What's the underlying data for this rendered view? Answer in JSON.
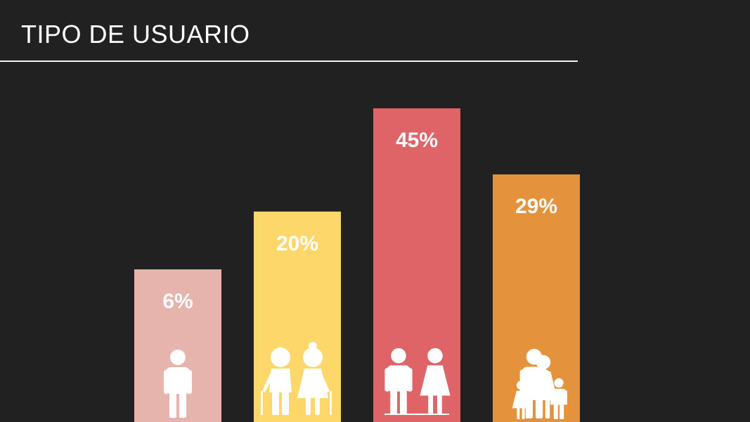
{
  "title": "TIPO DE USUARIO",
  "colors": {
    "background": "#212121",
    "text": "#ffffff",
    "bars": [
      "#e6b4ad",
      "#fdd76a",
      "#df6468",
      "#e4923c"
    ]
  },
  "chart_data": {
    "type": "bar",
    "title": "TIPO DE USUARIO",
    "categories": [
      "person-icon",
      "elderly-couple-icon",
      "couple-icon",
      "family-icon"
    ],
    "values": [
      6,
      20,
      45,
      29
    ],
    "data_labels": [
      "6%",
      "20%",
      "45%",
      "29%"
    ],
    "grid": false,
    "legend": "none"
  }
}
